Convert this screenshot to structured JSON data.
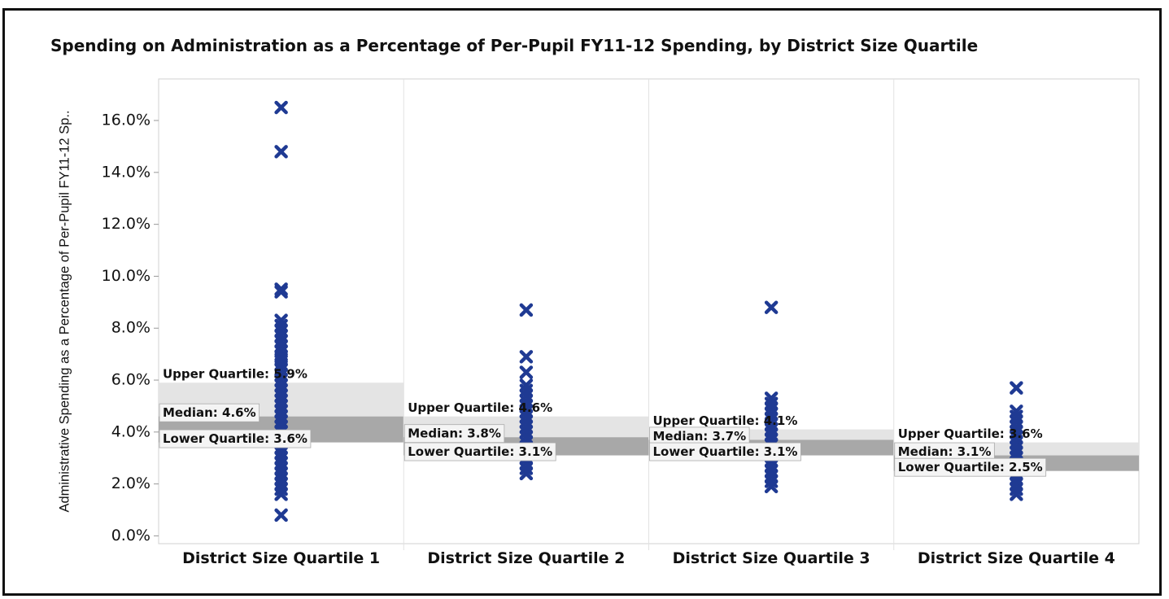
{
  "chart_data": {
    "type": "strip",
    "title": "Spending on Administration as a Percentage of Per-Pupil FY11-12 Spending, by District Size Quartile",
    "y_label": "Administrative Spending as a Percentage of Per-Pupil FY11-12 Sp..",
    "categories": [
      "District Size Quartile 1",
      "District Size Quartile 2",
      "District Size Quartile 3",
      "District Size Quartile 4"
    ],
    "ylim": [
      -0.3,
      17.6
    ],
    "yticks": [
      {
        "value": 0,
        "label": "0.0%"
      },
      {
        "value": 2,
        "label": "2.0%"
      },
      {
        "value": 4,
        "label": "4.0%"
      },
      {
        "value": 6,
        "label": "6.0%"
      },
      {
        "value": 8,
        "label": "8.0%"
      },
      {
        "value": 10,
        "label": "10.0%"
      },
      {
        "value": 12,
        "label": "12.0%"
      },
      {
        "value": 14,
        "label": "14.0%"
      },
      {
        "value": 16,
        "label": "16.0%"
      }
    ],
    "marker_color": "#1f3a93",
    "box_color": "#6aaee0",
    "upper_band_color": "#e4e4e4",
    "lower_band_color": "#a8a8a8",
    "points": [
      [
        16.5,
        14.8,
        9.5,
        9.4,
        8.3,
        8.1,
        7.9,
        7.7,
        7.5,
        7.3,
        7.1,
        6.9,
        6.8,
        6.6,
        6.4,
        6.2,
        6.0,
        5.8,
        5.6,
        5.4,
        5.2,
        5.0,
        4.8,
        4.6,
        4.4,
        4.2,
        4.0,
        3.8,
        3.6,
        3.4,
        3.2,
        3.0,
        2.8,
        2.6,
        2.4,
        2.2,
        2.0,
        1.8,
        1.6,
        0.8
      ],
      [
        8.7,
        6.9,
        6.3,
        5.8,
        5.6,
        5.4,
        5.2,
        5.0,
        4.8,
        4.6,
        4.4,
        4.2,
        4.0,
        3.8,
        3.6,
        3.4,
        3.2,
        3.0,
        2.8,
        2.6,
        2.4
      ],
      [
        8.8,
        5.3,
        5.1,
        4.9,
        4.7,
        4.5,
        4.3,
        4.1,
        3.9,
        3.7,
        3.5,
        3.3,
        3.1,
        2.9,
        2.7,
        2.5,
        2.3,
        2.1,
        1.9
      ],
      [
        5.7,
        4.8,
        4.6,
        4.4,
        4.2,
        4.0,
        3.8,
        3.6,
        3.4,
        3.2,
        3.0,
        2.8,
        2.6,
        2.4,
        2.2,
        2.0,
        1.8,
        1.6
      ]
    ],
    "upper_quartile": [
      5.9,
      4.6,
      4.1,
      3.6
    ],
    "upper_quartile_labels": [
      "Upper Quartile: 5.9%",
      "Upper Quartile: 4.6%",
      "Upper Quartile: 4.1%",
      "Upper Quartile: 3.6%"
    ],
    "median": [
      4.6,
      3.8,
      3.7,
      3.1
    ],
    "median_labels": [
      "Median: 4.6%",
      "Median: 3.8%",
      "Median: 3.7%",
      "Median: 3.1%"
    ],
    "lower_quartile": [
      3.6,
      3.1,
      3.1,
      2.5
    ],
    "lower_quartile_labels": [
      "Lower Quartile: 3.6%",
      "Lower Quartile: 3.1%",
      "Lower Quartile: 3.1%",
      "Lower Quartile: 2.5%"
    ]
  }
}
